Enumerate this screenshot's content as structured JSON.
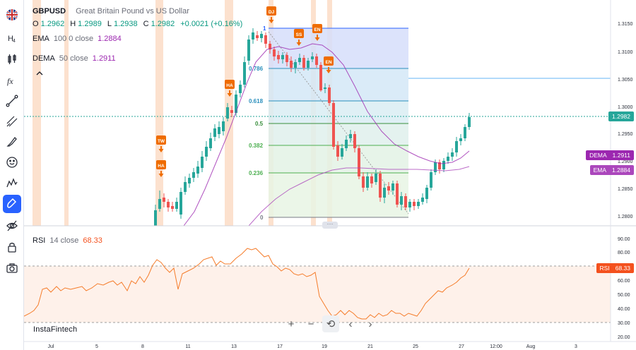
{
  "symbol": "GBPUSD",
  "description": "Great Britain Pound vs US Dollar",
  "ohlc": {
    "o_label": "O",
    "o": "1.2962",
    "h_label": "H",
    "h": "1.2989",
    "l_label": "L",
    "l": "1.2938",
    "c_label": "C",
    "c": "1.2982",
    "change": "+0.0021 (+0.16%)"
  },
  "ema": {
    "name": "EMA",
    "params": "100 0 close",
    "value": "1.2884",
    "color": "#9c27b0"
  },
  "dema": {
    "name": "DEMA",
    "params": "50 close",
    "value": "1.2911",
    "color": "#9c27b0"
  },
  "rsi": {
    "name": "RSI",
    "params": "14 close",
    "value": "68.33",
    "color": "#f57c2a"
  },
  "brand": "InstaFintech",
  "price_axis": [
    "1.3150",
    "1.3100",
    "1.3050",
    "1.3000",
    "1.2950",
    "1.2900",
    "1.2850",
    "1.2800"
  ],
  "rsi_axis": [
    "90.00",
    "80.00",
    "70.00",
    "60.00",
    "50.00",
    "40.00",
    "30.00",
    "20.00"
  ],
  "time_axis": [
    "Jul",
    "5",
    "8",
    "11",
    "13",
    "17",
    "19",
    "21",
    "25",
    "27",
    "12:00",
    "Aug",
    "3"
  ],
  "fib_levels": [
    {
      "label": "1",
      "color": "#2962ff"
    },
    {
      "label": "0.786",
      "color": "#00897b"
    },
    {
      "label": "0.618",
      "color": "#00897b"
    },
    {
      "label": "0.5",
      "color": "#4caf50"
    },
    {
      "label": "0.382",
      "color": "#4caf50"
    },
    {
      "label": "0.236",
      "color": "#4caf50"
    },
    {
      "label": "0",
      "color": "#787b86"
    }
  ],
  "event_markers": [
    {
      "label": "DJ"
    },
    {
      "label": "SS"
    },
    {
      "label": "EN"
    },
    {
      "label": "EN"
    },
    {
      "label": "HA"
    },
    {
      "label": "TW"
    },
    {
      "label": "HA"
    }
  ],
  "price_tags": [
    {
      "value": "1.2982",
      "color": "#26a69a"
    },
    {
      "name": "DEMA",
      "value": "1.2911",
      "color": "#9c27b0"
    },
    {
      "name": "EMA",
      "value": "1.2884",
      "color": "#ab47bc"
    },
    {
      "name": "RSI",
      "value": "68.33",
      "color": "#f4511e"
    }
  ],
  "zoom_controls": [
    "+",
    "−",
    "⟲",
    "‹",
    "›"
  ],
  "toolbar_icons": [
    "flag-uk-icon",
    "interval-icon",
    "candles-icon",
    "indicators-icon",
    "trendline-icon",
    "fib-icon",
    "brush-icon",
    "emoji-icon",
    "patterns-icon",
    "magnet-icon",
    "hide-icon",
    "lock-icon",
    "screenshot-icon"
  ]
}
